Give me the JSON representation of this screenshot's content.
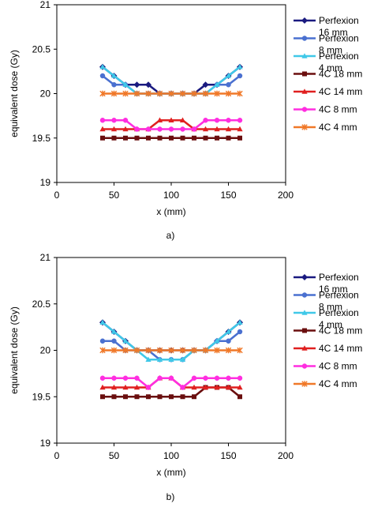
{
  "chart_data": [
    {
      "type": "line",
      "caption": "a)",
      "xlabel": "x (mm)",
      "ylabel": "equivalent dose (Gy)",
      "xlim": [
        0,
        200
      ],
      "ylim": [
        19,
        21
      ],
      "xticks": [
        0,
        50,
        100,
        150,
        200
      ],
      "yticks": [
        "19",
        "19.5",
        "20",
        "20.5",
        "21"
      ],
      "grid": false,
      "legend": "right",
      "x": [
        40,
        50,
        60,
        70,
        80,
        90,
        100,
        110,
        120,
        130,
        140,
        150,
        160
      ],
      "series": [
        {
          "name": "Perfexion 16 mm",
          "color": "#1a1a80",
          "marker": "diamond",
          "values": [
            20.3,
            20.2,
            20.1,
            20.1,
            20.1,
            20.0,
            20.0,
            20.0,
            20.0,
            20.1,
            20.1,
            20.2,
            20.3
          ]
        },
        {
          "name": "Perfexion 8 mm",
          "color": "#4a70d0",
          "marker": "circle",
          "values": [
            20.2,
            20.1,
            20.1,
            20.0,
            20.0,
            20.0,
            20.0,
            20.0,
            20.0,
            20.0,
            20.1,
            20.1,
            20.2
          ]
        },
        {
          "name": "Perfexion 4 mm",
          "color": "#40c8e8",
          "marker": "triangle",
          "values": [
            20.3,
            20.2,
            20.1,
            20.0,
            20.0,
            20.0,
            20.0,
            20.0,
            20.0,
            20.0,
            20.1,
            20.2,
            20.3
          ]
        },
        {
          "name": "4C 18 mm",
          "color": "#6a0e0e",
          "marker": "square",
          "values": [
            19.5,
            19.5,
            19.5,
            19.5,
            19.5,
            19.5,
            19.5,
            19.5,
            19.5,
            19.5,
            19.5,
            19.5,
            19.5
          ]
        },
        {
          "name": "4C 14 mm",
          "color": "#e02020",
          "marker": "triangle",
          "values": [
            19.6,
            19.6,
            19.6,
            19.6,
            19.6,
            19.7,
            19.7,
            19.7,
            19.6,
            19.6,
            19.6,
            19.6,
            19.6
          ]
        },
        {
          "name": "4C 8 mm",
          "color": "#ff2ee0",
          "marker": "circle",
          "values": [
            19.7,
            19.7,
            19.7,
            19.6,
            19.6,
            19.6,
            19.6,
            19.6,
            19.6,
            19.7,
            19.7,
            19.7,
            19.7
          ]
        },
        {
          "name": "4C 4 mm",
          "color": "#f07828",
          "marker": "star",
          "values": [
            20.0,
            20.0,
            20.0,
            20.0,
            20.0,
            20.0,
            20.0,
            20.0,
            20.0,
            20.0,
            20.0,
            20.0,
            20.0
          ]
        }
      ]
    },
    {
      "type": "line",
      "caption": "b)",
      "xlabel": "x (mm)",
      "ylabel": "equivalent dose (Gy)",
      "xlim": [
        0,
        200
      ],
      "ylim": [
        19,
        21
      ],
      "xticks": [
        0,
        50,
        100,
        150,
        200
      ],
      "yticks": [
        "19",
        "19.5",
        "20",
        "20.5",
        "21"
      ],
      "grid": false,
      "legend": "right",
      "x": [
        40,
        50,
        60,
        70,
        80,
        90,
        100,
        110,
        120,
        130,
        140,
        150,
        160
      ],
      "series": [
        {
          "name": "Perfexion 16 mm",
          "color": "#1a1a80",
          "marker": "diamond",
          "values": [
            20.3,
            20.2,
            20.1,
            20.0,
            20.0,
            20.0,
            20.0,
            20.0,
            20.0,
            20.0,
            20.1,
            20.2,
            20.3
          ]
        },
        {
          "name": "Perfexion 8 mm",
          "color": "#4a70d0",
          "marker": "circle",
          "values": [
            20.1,
            20.1,
            20.0,
            20.0,
            20.0,
            19.9,
            19.9,
            19.9,
            20.0,
            20.0,
            20.1,
            20.1,
            20.2
          ]
        },
        {
          "name": "Perfexion 4 mm",
          "color": "#40c8e8",
          "marker": "triangle",
          "values": [
            20.3,
            20.2,
            20.1,
            20.0,
            19.9,
            19.9,
            19.9,
            19.9,
            20.0,
            20.0,
            20.1,
            20.2,
            20.3
          ]
        },
        {
          "name": "4C 18 mm",
          "color": "#6a0e0e",
          "marker": "square",
          "values": [
            19.5,
            19.5,
            19.5,
            19.5,
            19.5,
            19.5,
            19.5,
            19.5,
            19.5,
            19.6,
            19.6,
            19.6,
            19.5
          ]
        },
        {
          "name": "4C 14 mm",
          "color": "#e02020",
          "marker": "triangle",
          "values": [
            19.6,
            19.6,
            19.6,
            19.6,
            19.6,
            19.7,
            19.7,
            19.6,
            19.6,
            19.6,
            19.6,
            19.6,
            19.6
          ]
        },
        {
          "name": "4C 8 mm",
          "color": "#ff2ee0",
          "marker": "circle",
          "values": [
            19.7,
            19.7,
            19.7,
            19.7,
            19.6,
            19.7,
            19.7,
            19.6,
            19.7,
            19.7,
            19.7,
            19.7,
            19.7
          ]
        },
        {
          "name": "4C 4 mm",
          "color": "#f07828",
          "marker": "star",
          "values": [
            20.0,
            20.0,
            20.0,
            20.0,
            20.0,
            20.0,
            20.0,
            20.0,
            20.0,
            20.0,
            20.0,
            20.0,
            20.0
          ]
        }
      ]
    }
  ]
}
